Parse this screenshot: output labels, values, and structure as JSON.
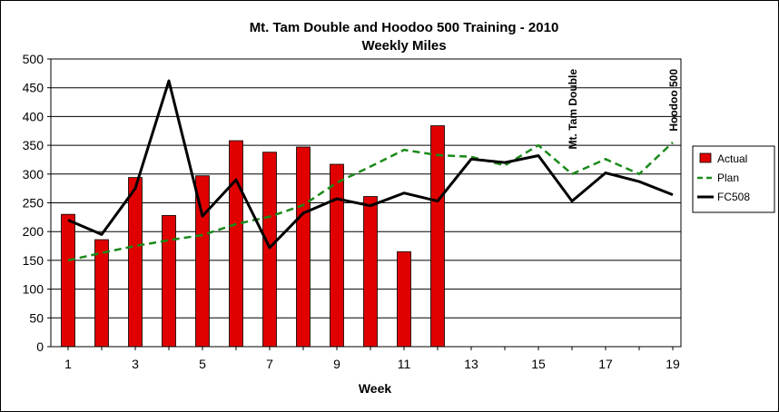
{
  "chart_data": {
    "type": "bar",
    "title": "Mt. Tam Double and Hoodoo 500 Training - 2010",
    "subtitle": "Weekly Miles",
    "xlabel": "Week",
    "ylabel": "",
    "ylim": [
      0,
      500
    ],
    "yticks": [
      0,
      50,
      100,
      150,
      200,
      250,
      300,
      350,
      400,
      450,
      500
    ],
    "xticks": [
      1,
      3,
      5,
      7,
      9,
      11,
      13,
      15,
      17,
      19
    ],
    "xlim": [
      1,
      19
    ],
    "grid": true,
    "legend_position": "right",
    "series": [
      {
        "name": "Actual",
        "type": "bar",
        "color": "#e00000",
        "x": [
          1,
          2,
          3,
          4,
          5,
          6,
          7,
          8,
          9,
          10,
          11,
          12
        ],
        "values": [
          230,
          186,
          294,
          228,
          297,
          358,
          338,
          347,
          317,
          261,
          165,
          384
        ]
      },
      {
        "name": "Plan",
        "type": "line",
        "style": "dashed",
        "color": "#1a8a1a",
        "x": [
          1,
          2,
          3,
          4,
          5,
          6,
          7,
          8,
          9,
          10,
          11,
          12,
          13,
          14,
          15,
          16,
          17,
          18,
          19
        ],
        "values": [
          150,
          163,
          175,
          185,
          194,
          213,
          226,
          246,
          285,
          313,
          342,
          333,
          330,
          315,
          350,
          300,
          326,
          300,
          355
        ]
      },
      {
        "name": "FC508",
        "type": "line",
        "style": "solid",
        "color": "#000000",
        "x": [
          1,
          2,
          3,
          4,
          5,
          6,
          7,
          8,
          9,
          10,
          11,
          12,
          13,
          14,
          15,
          16,
          17,
          18,
          19
        ],
        "values": [
          220,
          195,
          275,
          462,
          227,
          290,
          172,
          232,
          257,
          245,
          267,
          253,
          326,
          320,
          332,
          253,
          302,
          287,
          264
        ]
      }
    ],
    "annotations": [
      {
        "text": "Mt. Tam Double",
        "x": 16,
        "orientation": "vertical"
      },
      {
        "text": "Hoodoo 500",
        "x": 19,
        "orientation": "vertical"
      }
    ]
  }
}
